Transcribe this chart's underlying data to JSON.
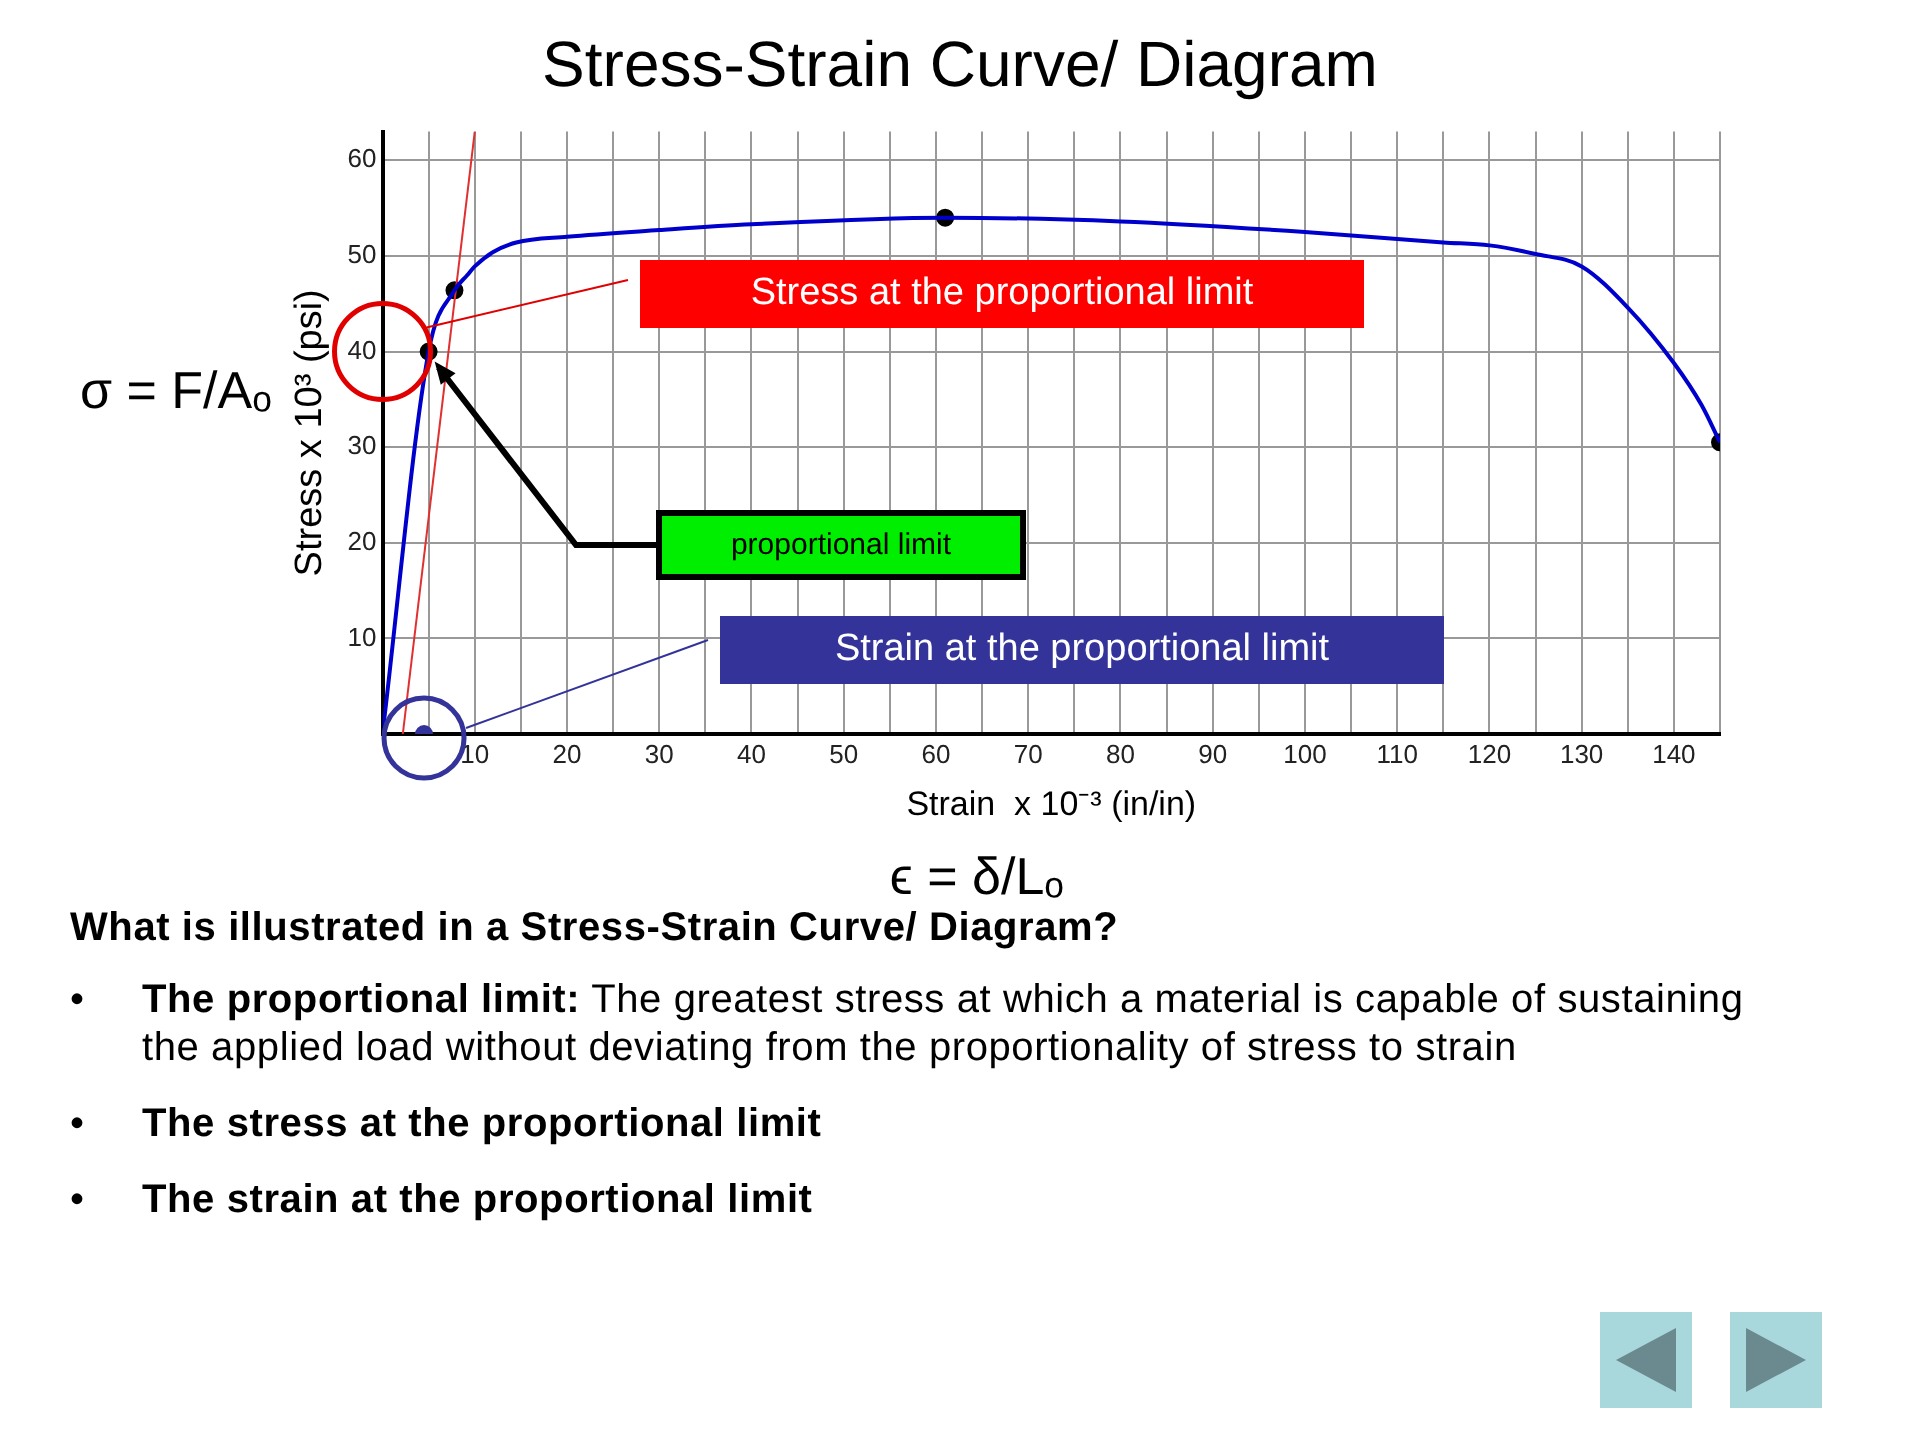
{
  "chart_data": {
    "type": "line",
    "title": "Stress-Strain Curve/ Diagram",
    "xlabel": "Strain  x 10⁻³ (in/in)",
    "ylabel": "Stress x 10³ (psi)",
    "xlim": [
      0,
      145
    ],
    "ylim": [
      0,
      63
    ],
    "xticks": [
      {
        "value": 5,
        "label": null
      },
      10,
      {
        "value": 15,
        "label": null
      },
      20,
      {
        "value": 25,
        "label": null
      },
      30,
      {
        "value": 35,
        "label": null
      },
      40,
      {
        "value": 45,
        "label": null
      },
      50,
      {
        "value": 55,
        "label": null
      },
      60,
      {
        "value": 65,
        "label": null
      },
      70,
      {
        "value": 75,
        "label": null
      },
      80,
      {
        "value": 85,
        "label": null
      },
      90,
      {
        "value": 95,
        "label": null
      },
      100,
      {
        "value": 105,
        "label": null
      },
      110,
      {
        "value": 115,
        "label": null
      },
      120,
      {
        "value": 125,
        "label": null
      },
      130,
      {
        "value": 135,
        "label": null
      },
      140,
      {
        "value": 145,
        "label": null
      }
    ],
    "yticks": [
      10,
      20,
      30,
      40,
      50,
      60
    ],
    "grid": true,
    "legend": false,
    "series": [
      {
        "color": "#0000cc",
        "marker": "none",
        "x": [
          0,
          5,
          7.8,
          9.2,
          10,
          12,
          14.5,
          20,
          30,
          40,
          61,
          80,
          100,
          115,
          120,
          125,
          130,
          135,
          140,
          143,
          145
        ],
        "values": [
          0,
          40,
          46.4,
          48,
          48.9,
          50.4,
          51.4,
          52,
          52.7,
          53.3,
          54,
          53.6,
          52.5,
          51.4,
          51.1,
          50.2,
          48.9,
          44.6,
          38.8,
          34.4,
          30.5
        ]
      },
      {
        "color": "#e03030",
        "marker": "none",
        "x": [
          2.2,
          10
        ],
        "values": [
          0,
          63
        ]
      },
      {
        "type": "scatter",
        "color": "#000000",
        "marker": "circle",
        "x": [
          5,
          7.8,
          61,
          145
        ],
        "values": [
          40,
          46.4,
          54,
          30.5
        ]
      },
      {
        "type": "scatter",
        "color": "#333399",
        "marker": "circle",
        "x": [
          4.5
        ],
        "values": [
          0
        ]
      }
    ],
    "annotations": [
      "σ = F/Aₒ",
      "ϵ = δ/Lₒ",
      "Stress at the proportional limit",
      "proportional limit",
      "Strain at the proportional limit",
      "What is illustrated in a Stress-Strain Curve/ Diagram?",
      "• The proportional limit: The greatest stress at which a material is capable of sustaining the applied load without deviating from the proportionality of stress to strain",
      "• The stress at the proportional limit",
      "• The strain at the proportional limit"
    ]
  }
}
